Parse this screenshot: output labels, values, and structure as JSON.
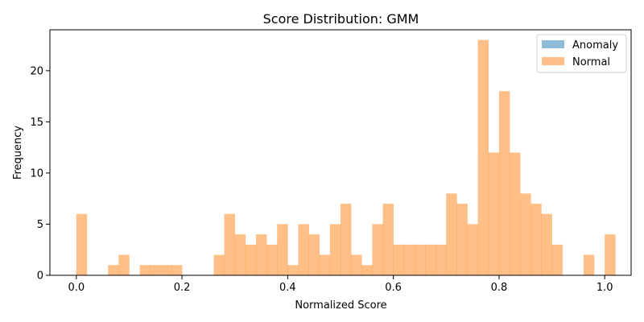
{
  "chart_data": {
    "type": "bar",
    "title": "Score Distribution: GMM",
    "xlabel": "Normalized Score",
    "ylabel": "Frequency",
    "xlim": [
      -0.05,
      1.05
    ],
    "ylim": [
      0,
      24
    ],
    "x_ticks": [
      0.0,
      0.2,
      0.4,
      0.6,
      0.8,
      1.0
    ],
    "x_tick_labels": [
      "0.0",
      "0.2",
      "0.4",
      "0.6",
      "0.8",
      "1.0"
    ],
    "y_ticks": [
      0,
      5,
      10,
      15,
      20
    ],
    "y_tick_labels": [
      "0",
      "5",
      "10",
      "15",
      "20"
    ],
    "legend_position": "top-right",
    "bin_edges_start": 0.0,
    "bin_width": 0.02,
    "series": [
      {
        "name": "Anomaly",
        "color": "#1f77b4",
        "opacity": 0.5,
        "values": []
      },
      {
        "name": "Normal",
        "color": "#ff7f0e",
        "opacity": 0.5,
        "values": [
          6,
          0,
          0,
          1,
          2,
          0,
          1,
          1,
          1,
          1,
          0,
          0,
          0,
          2,
          6,
          4,
          3,
          4,
          3,
          5,
          1,
          5,
          4,
          2,
          5,
          7,
          2,
          1,
          5,
          7,
          3,
          3,
          3,
          3,
          3,
          8,
          7,
          5,
          23,
          12,
          18,
          12,
          8,
          7,
          6,
          3,
          0,
          0,
          2,
          0,
          4
        ]
      }
    ]
  }
}
